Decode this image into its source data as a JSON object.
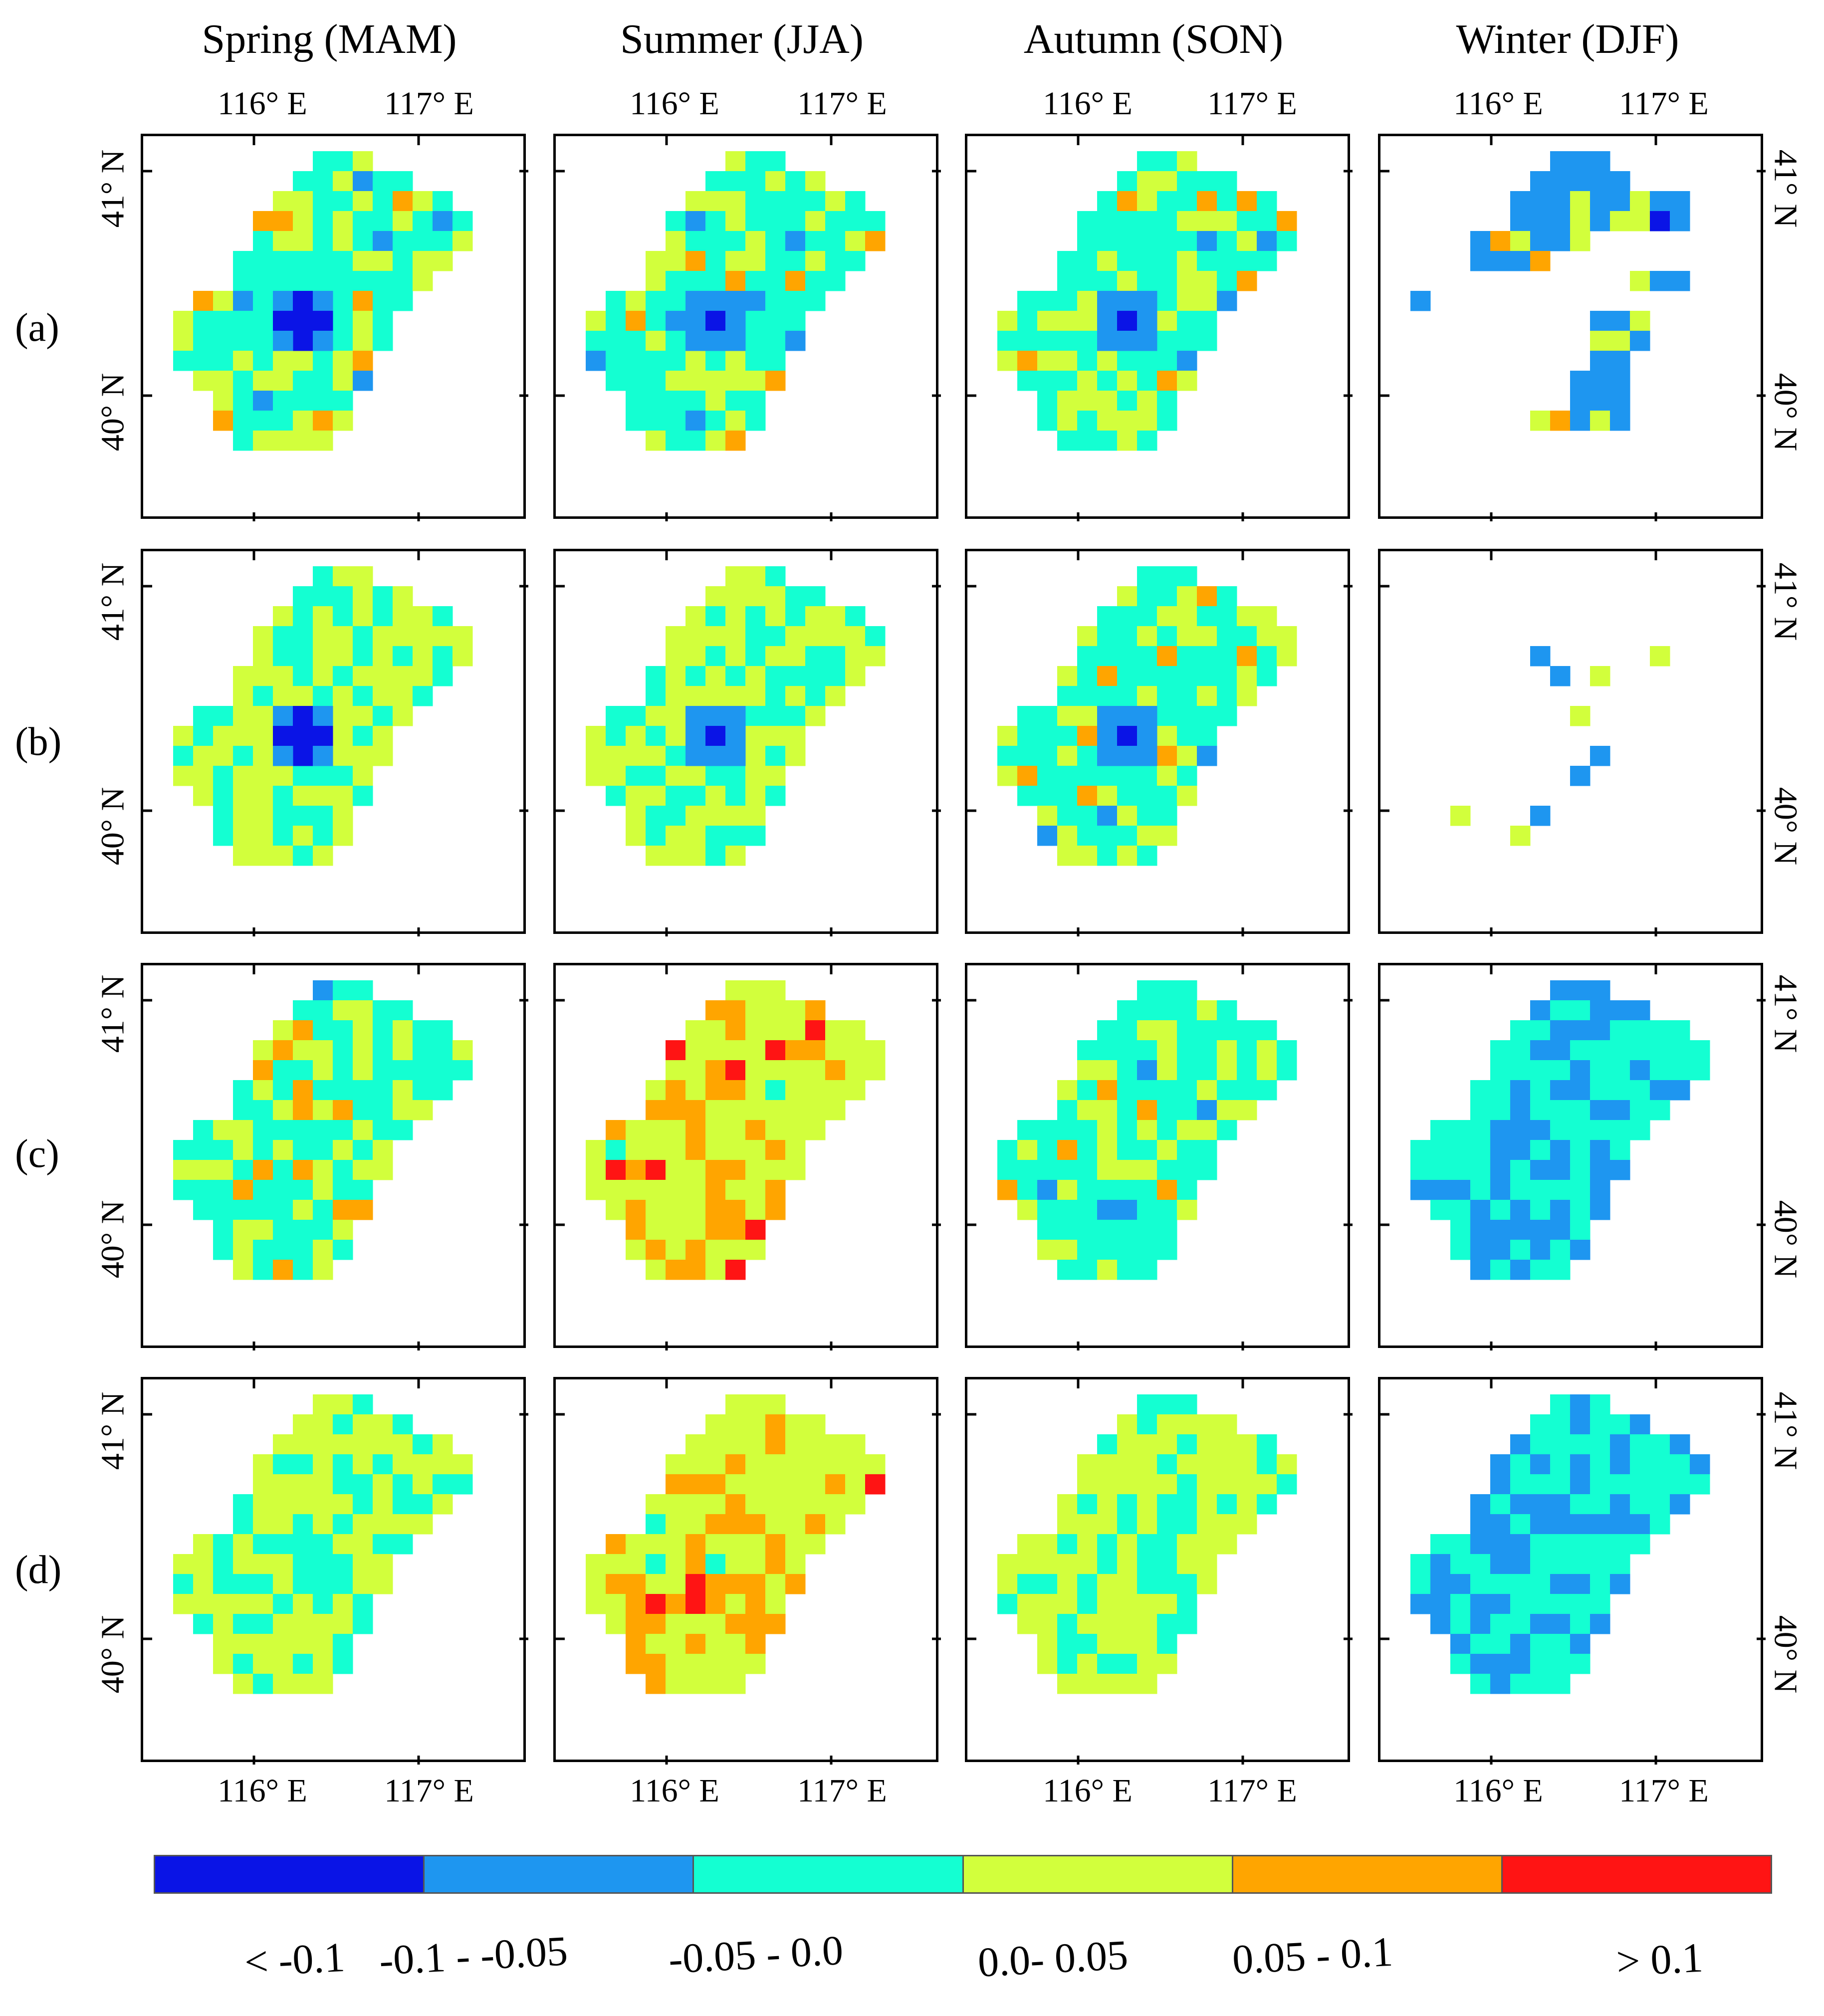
{
  "figure": {
    "seasons": [
      "Spring (MAM)",
      "Summer (JJA)",
      "Autumn (SON)",
      "Winter (DJF)"
    ],
    "row_labels": [
      "(a)",
      "(b)",
      "(c)",
      "(d)"
    ],
    "lon_ticks": [
      "116° E",
      "117° E"
    ],
    "lat_ticks": [
      "41° N",
      "40° N"
    ]
  },
  "legend": {
    "classes": [
      {
        "label": "< -0.1",
        "color": "#0a14e6"
      },
      {
        "label": "-0.1 - -0.05",
        "color": "#1e96f0"
      },
      {
        "label": "-0.05 - 0.0",
        "color": "#14ffd2"
      },
      {
        "label": "0.0- 0.05",
        "color": "#d2ff3c"
      },
      {
        "label": "0.05 - 0.1",
        "color": "#ffa500"
      },
      {
        "label": "> 0.1",
        "color": "#ff1414"
      }
    ]
  }
}
